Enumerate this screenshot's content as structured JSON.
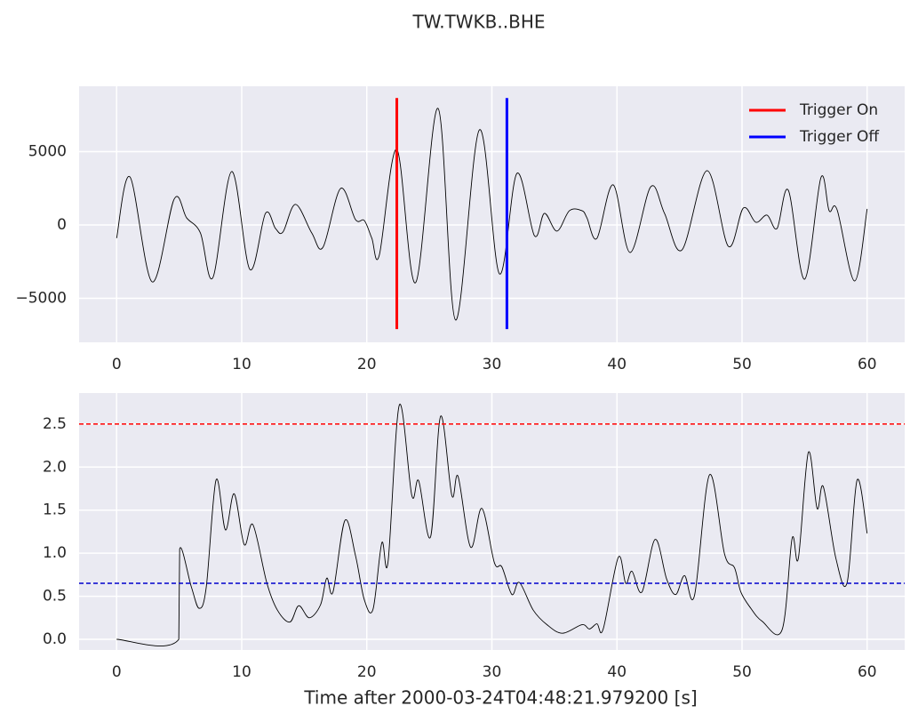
{
  "title": "TW.TWKB..BHE",
  "chart_data": [
    {
      "type": "line",
      "x": [
        0,
        1.07,
        2.84,
        4.6,
        5.6,
        6.7,
        7.7,
        9.2,
        10.65,
        11.9,
        12.7,
        13.3,
        14.3,
        15.6,
        16.5,
        17.9,
        19.1,
        19.8,
        20.4,
        21,
        22.4,
        23.9,
        25.7,
        27.1,
        29,
        30.6,
        32.0,
        33.4,
        34.2,
        35.2,
        36.2,
        37.2,
        37.6,
        38.4,
        39.7,
        41.05,
        42.7,
        43.8,
        45.2,
        47.2,
        48.9,
        50.1,
        51.1,
        52,
        52.8,
        53.7,
        55.0,
        56.3,
        56.96,
        57.6,
        59.0,
        60
      ],
      "series": [
        {
          "color": "#000000",
          "values": [
            -900,
            3270,
            -3880,
            1760,
            480,
            -550,
            -3580,
            3640,
            -3030,
            790,
            -240,
            -480,
            1400,
            -550,
            -1520,
            2480,
            360,
            300,
            -900,
            -2060,
            5150,
            -3940,
            7940,
            -6480,
            6480,
            -3330,
            3510,
            -730,
            790,
            -420,
            970,
            970,
            480,
            -910,
            2730,
            -1880,
            2600,
            790,
            -1700,
            3700,
            -1450,
            1150,
            180,
            670,
            -240,
            2360,
            -3700,
            3210,
            970,
            1030,
            -3820,
            1090
          ]
        }
      ],
      "vlines": [
        {
          "name": "Trigger On",
          "value": 22.4,
          "ymin": -7100,
          "ymax": 8650,
          "color": "#ff0000"
        },
        {
          "name": "Trigger Off",
          "value": 31.2,
          "ymin": -7100,
          "ymax": 8650,
          "color": "#0000ff"
        }
      ],
      "xlim": [
        -3,
        63
      ],
      "xticks": [
        0,
        10,
        20,
        30,
        40,
        50,
        60
      ],
      "ylim": [
        -8000,
        9450
      ],
      "yticks": [
        {
          "value": -5000,
          "label": "−5000"
        },
        0,
        5000
      ],
      "grid": true,
      "legend": "upper right"
    },
    {
      "type": "line",
      "xlabel": "Time after 2000-03-24T04:48:21.979200 [s]",
      "x": [
        0,
        4.97,
        5.04,
        5.97,
        6.6,
        7.17,
        7.95,
        8.7,
        9.4,
        10.2,
        10.9,
        12.0,
        12.85,
        13.85,
        14.56,
        15.4,
        16.3,
        16.8,
        17.3,
        18.25,
        19.1,
        19.8,
        20.5,
        21.2,
        21.7,
        22.6,
        23.6,
        24.15,
        25.1,
        25.9,
        26.8,
        27.3,
        28.3,
        29.2,
        30.2,
        30.8,
        31.6,
        32.2,
        33.3,
        34.4,
        35.65,
        37.2,
        37.8,
        38.4,
        38.9,
        40.1,
        40.7,
        41.2,
        42.0,
        43.05,
        43.97,
        44.7,
        45.4,
        46.2,
        47.4,
        48.6,
        49.4,
        49.9,
        50.7,
        51.6,
        53.2,
        54.0,
        54.5,
        55.3,
        56.0,
        56.5,
        57.5,
        58.4,
        59.2,
        60
      ],
      "series": [
        {
          "color": "#000000",
          "values": [
            0,
            0,
            1.05,
            0.61,
            0.36,
            0.61,
            1.85,
            1.27,
            1.69,
            1.1,
            1.33,
            0.66,
            0.34,
            0.2,
            0.39,
            0.25,
            0.4,
            0.71,
            0.55,
            1.38,
            0.97,
            0.46,
            0.35,
            1.12,
            0.9,
            2.72,
            1.67,
            1.84,
            1.19,
            2.59,
            1.67,
            1.89,
            1.07,
            1.52,
            0.89,
            0.84,
            0.52,
            0.66,
            0.34,
            0.17,
            0.07,
            0.17,
            0.12,
            0.18,
            0.12,
            0.95,
            0.65,
            0.79,
            0.55,
            1.16,
            0.7,
            0.52,
            0.74,
            0.51,
            1.91,
            0.99,
            0.83,
            0.55,
            0.36,
            0.21,
            0.11,
            1.17,
            0.94,
            2.17,
            1.52,
            1.77,
            0.94,
            0.66,
            1.85,
            1.23
          ]
        }
      ],
      "hlines": [
        {
          "value": 2.5,
          "color": "#ff0000"
        },
        {
          "value": 0.65,
          "color": "#0000cc"
        }
      ],
      "xlim": [
        -3,
        63
      ],
      "xticks": [
        0,
        10,
        20,
        30,
        40,
        50,
        60
      ],
      "ylim": [
        -0.124,
        2.86
      ],
      "yticks": [
        {
          "value": 0,
          "label": "0.0"
        },
        0.5,
        {
          "value": 1,
          "label": "1.0"
        },
        1.5,
        {
          "value": 2,
          "label": "2.0"
        },
        2.5
      ],
      "grid": true
    }
  ]
}
